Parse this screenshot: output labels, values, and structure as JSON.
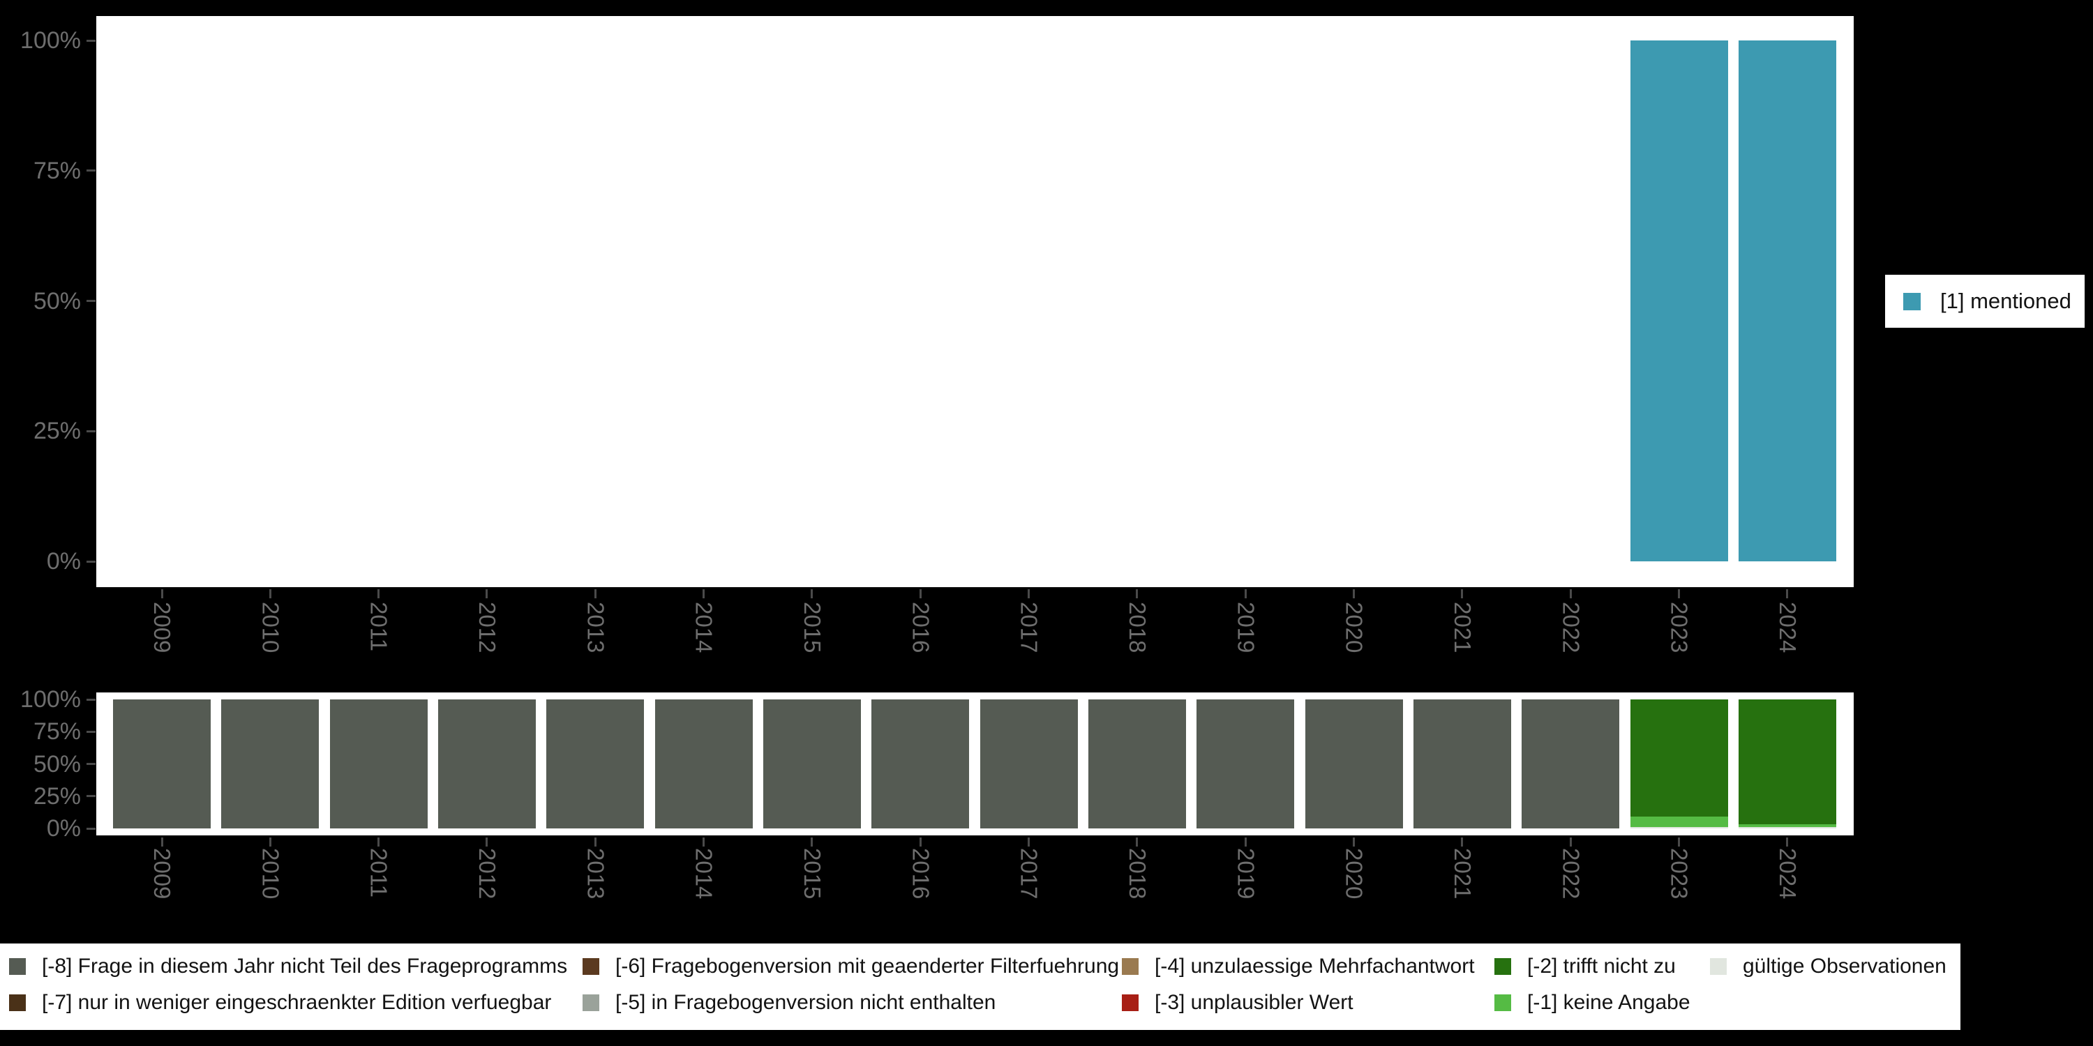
{
  "years": [
    "2009",
    "2010",
    "2011",
    "2012",
    "2013",
    "2014",
    "2015",
    "2016",
    "2017",
    "2018",
    "2019",
    "2020",
    "2021",
    "2022",
    "2023",
    "2024"
  ],
  "colors": {
    "background": "#000000",
    "panel": "#ffffff",
    "axis_text": "#6e6e6e",
    "tick": "#4a4a4a",
    "legend_text": "#131313",
    "teal": "#3d9ab1",
    "gray8": "#555b53",
    "brown7": "#4a3118",
    "brown6": "#5b3a20",
    "gray5": "#9aa29a",
    "tan4": "#9a7a50",
    "red3": "#a81f15",
    "green2": "#26710f",
    "green1": "#55bb44",
    "valid": "#e1e6df"
  },
  "chart_data": [
    {
      "type": "bar",
      "stacked": true,
      "title": "",
      "xlabel": "",
      "ylabel": "",
      "ylim": [
        0,
        100
      ],
      "grid": false,
      "legend_position": "right",
      "categories": [
        "2009",
        "2010",
        "2011",
        "2012",
        "2013",
        "2014",
        "2015",
        "2016",
        "2017",
        "2018",
        "2019",
        "2020",
        "2021",
        "2022",
        "2023",
        "2024"
      ],
      "y_ticks": [
        "0%",
        "25%",
        "50%",
        "75%",
        "100%"
      ],
      "series": [
        {
          "name": "[1] mentioned",
          "color_key": "teal",
          "values": [
            0,
            0,
            0,
            0,
            0,
            0,
            0,
            0,
            0,
            0,
            0,
            0,
            0,
            0,
            100,
            100
          ]
        }
      ]
    },
    {
      "type": "bar",
      "stacked": true,
      "title": "",
      "xlabel": "",
      "ylabel": "",
      "ylim": [
        0,
        100
      ],
      "grid": false,
      "legend_position": "bottom",
      "categories": [
        "2009",
        "2010",
        "2011",
        "2012",
        "2013",
        "2014",
        "2015",
        "2016",
        "2017",
        "2018",
        "2019",
        "2020",
        "2021",
        "2022",
        "2023",
        "2024"
      ],
      "y_ticks": [
        "0%",
        "25%",
        "50%",
        "75%",
        "100%"
      ],
      "series": [
        {
          "name": "gültige Observationen",
          "color_key": "valid",
          "values": [
            0,
            0,
            0,
            0,
            0,
            0,
            0,
            0,
            0,
            0,
            0,
            0,
            0,
            0,
            1,
            1
          ]
        },
        {
          "name": "[-1] keine Angabe",
          "color_key": "green1",
          "values": [
            0,
            0,
            0,
            0,
            0,
            0,
            0,
            0,
            0,
            0,
            0,
            0,
            0,
            0,
            8,
            2
          ]
        },
        {
          "name": "[-2] trifft nicht zu",
          "color_key": "green2",
          "values": [
            0,
            0,
            0,
            0,
            0,
            0,
            0,
            0,
            0,
            0,
            0,
            0,
            0,
            0,
            91,
            97
          ]
        },
        {
          "name": "[-8] Frage in diesem Jahr nicht Teil des Frageprogramms",
          "color_key": "gray8",
          "values": [
            100,
            100,
            100,
            100,
            100,
            100,
            100,
            100,
            100,
            100,
            100,
            100,
            100,
            100,
            0,
            0
          ]
        }
      ]
    }
  ],
  "legend_top": {
    "items": [
      {
        "label": "[1] mentioned",
        "color_key": "teal"
      }
    ]
  },
  "legend_bottom": {
    "columns": [
      {
        "items": [
          {
            "label": "[-8] Frage in diesem Jahr nicht Teil des Frageprogramms",
            "color_key": "gray8",
            "code": "minus8"
          },
          {
            "label": "[-7] nur in weniger eingeschraenkter Edition verfuegbar",
            "color_key": "brown7",
            "code": "minus7"
          }
        ]
      },
      {
        "items": [
          {
            "label": "[-6] Fragebogenversion mit geaenderter Filterfuehrung",
            "color_key": "brown6",
            "code": "minus6"
          },
          {
            "label": "[-5] in Fragebogenversion nicht enthalten",
            "color_key": "gray5",
            "code": "minus5"
          }
        ]
      },
      {
        "items": [
          {
            "label": "[-4] unzulaessige Mehrfachantwort",
            "color_key": "tan4",
            "code": "minus4"
          },
          {
            "label": "[-3] unplausibler Wert",
            "color_key": "red3",
            "code": "minus3"
          }
        ]
      },
      {
        "items": [
          {
            "label": "[-2] trifft nicht zu",
            "color_key": "green2",
            "code": "minus2"
          },
          {
            "label": "[-1] keine Angabe",
            "color_key": "green1",
            "code": "minus1"
          }
        ]
      },
      {
        "items": [
          {
            "label": "gültige Observationen",
            "color_key": "valid",
            "code": "valid"
          }
        ]
      }
    ]
  }
}
